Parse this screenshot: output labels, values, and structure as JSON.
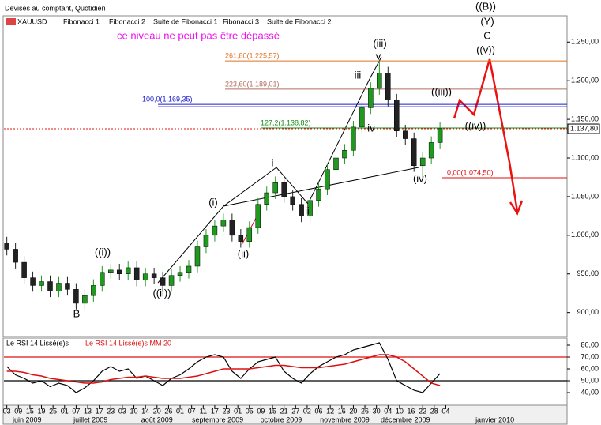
{
  "chart_data": {
    "type": "candlestick",
    "title": "Devises au comptant, Quotidien",
    "symbol": "XAUUSD",
    "toolbar": [
      "Fibonacci 1",
      "Fibonacci 2",
      "Suite de Fibonacci 1",
      "Fibonacci 3",
      "Suite de Fibonacci 2"
    ],
    "annotation": "ce niveau ne peut pas être dépassé",
    "x": [
      1,
      4,
      7,
      10,
      13,
      16,
      19,
      22,
      25,
      28,
      31,
      34,
      37,
      40,
      43,
      46,
      49,
      52,
      55,
      58,
      61,
      64,
      67,
      70,
      73,
      76,
      79,
      82,
      85,
      88,
      91,
      94,
      97,
      100,
      103,
      106,
      109,
      112,
      115,
      118,
      121,
      124,
      127,
      130,
      133,
      136,
      139,
      142,
      145,
      148,
      151
    ],
    "open": [
      990,
      982,
      965,
      945,
      935,
      940,
      928,
      938,
      930,
      912,
      922,
      935,
      952,
      955,
      950,
      958,
      942,
      950,
      945,
      935,
      948,
      952,
      960,
      985,
      1000,
      1012,
      1020,
      1000,
      992,
      1010,
      1040,
      1055,
      1068,
      1050,
      1040,
      1025,
      1045,
      1060,
      1085,
      1100,
      1110,
      1140,
      1165,
      1190,
      1210,
      1175,
      1135,
      1125,
      1090,
      1100,
      1120
    ],
    "high": [
      998,
      990,
      973,
      953,
      948,
      948,
      946,
      946,
      938,
      930,
      943,
      960,
      963,
      963,
      966,
      966,
      958,
      958,
      953,
      956,
      960,
      968,
      993,
      1008,
      1020,
      1028,
      1028,
      1008,
      1018,
      1048,
      1063,
      1076,
      1076,
      1058,
      1048,
      1053,
      1068,
      1093,
      1108,
      1118,
      1148,
      1173,
      1198,
      1226,
      1218,
      1183,
      1143,
      1133,
      1108,
      1128,
      1146
    ],
    "low": [
      974,
      957,
      937,
      927,
      927,
      920,
      920,
      922,
      904,
      904,
      914,
      927,
      944,
      942,
      942,
      934,
      934,
      937,
      927,
      927,
      940,
      944,
      952,
      977,
      992,
      1004,
      992,
      984,
      984,
      1002,
      1032,
      1047,
      1042,
      1032,
      1017,
      1017,
      1037,
      1052,
      1077,
      1092,
      1102,
      1132,
      1157,
      1182,
      1167,
      1127,
      1117,
      1082,
      1074,
      1092,
      1112
    ],
    "close": [
      982,
      965,
      945,
      935,
      940,
      928,
      938,
      930,
      912,
      922,
      935,
      952,
      955,
      950,
      958,
      942,
      950,
      945,
      935,
      948,
      952,
      960,
      985,
      1000,
      1012,
      1020,
      1000,
      992,
      1010,
      1040,
      1055,
      1068,
      1050,
      1040,
      1025,
      1045,
      1060,
      1085,
      1100,
      1110,
      1140,
      1165,
      1190,
      1210,
      1175,
      1135,
      1125,
      1090,
      1100,
      1120,
      1138
    ],
    "up_color": "#1f9a1f",
    "down_color": "#222222",
    "xlim": [
      0,
      195
    ],
    "ylim": [
      869,
      1284
    ],
    "yticks": [
      {
        "value": 900,
        "label": "900,00"
      },
      {
        "value": 950,
        "label": "950,00"
      },
      {
        "value": 1000,
        "label": "1.000,00"
      },
      {
        "value": 1050,
        "label": "1.050,00"
      },
      {
        "value": 1100,
        "label": "1.100,00"
      },
      {
        "value": 1150,
        "label": "1.150,00"
      },
      {
        "value": 1200,
        "label": "1.200,00"
      },
      {
        "value": 1250,
        "label": "1.250,00"
      }
    ],
    "last_price": {
      "value": 1137.8,
      "label": "1.137,80"
    },
    "fib_levels": [
      {
        "label": "261,80(1.225,57)",
        "value": 1225.57,
        "color": "#e07020"
      },
      {
        "label": "223,60(1.189,01)",
        "value": 1189.01,
        "color": "#b07060"
      },
      {
        "label": "100,0(1.169,35)",
        "value": 1169.35,
        "color": "#1a1acc"
      },
      {
        "label": "127,2(1.138,82)",
        "value": 1138.82,
        "color": "#1a8a1a"
      },
      {
        "label": "0,00(1.074,50)",
        "value": 1074.5,
        "color": "#dd1010"
      }
    ],
    "wave_labels": [
      "((B))",
      "(Y)",
      "C",
      "((v))",
      "(iii)",
      "v",
      "iii",
      "iv",
      "((iii))",
      "((iv))",
      "(iv)",
      "i",
      "ii",
      "(i)",
      "(ii)",
      "((i))",
      "((ii))",
      "B"
    ],
    "xticks": [
      {
        "value": 1,
        "label": "03"
      },
      {
        "value": 5,
        "label": "09"
      },
      {
        "value": 9,
        "label": "15"
      },
      {
        "value": 13,
        "label": "19"
      },
      {
        "value": 17,
        "label": "25"
      },
      {
        "value": 21,
        "label": "01"
      },
      {
        "value": 25,
        "label": "07"
      },
      {
        "value": 29,
        "label": "13"
      },
      {
        "value": 33,
        "label": "17"
      },
      {
        "value": 37,
        "label": "23"
      },
      {
        "value": 41,
        "label": "03"
      },
      {
        "value": 45,
        "label": "10"
      },
      {
        "value": 49,
        "label": "14"
      },
      {
        "value": 53,
        "label": "20"
      },
      {
        "value": 57,
        "label": "26"
      },
      {
        "value": 61,
        "label": "01"
      },
      {
        "value": 65,
        "label": "07"
      },
      {
        "value": 69,
        "label": "11"
      },
      {
        "value": 73,
        "label": "17"
      },
      {
        "value": 77,
        "label": "23"
      },
      {
        "value": 81,
        "label": "01"
      },
      {
        "value": 85,
        "label": "05"
      },
      {
        "value": 89,
        "label": "09"
      },
      {
        "value": 93,
        "label": "15"
      },
      {
        "value": 97,
        "label": "21"
      },
      {
        "value": 101,
        "label": "27"
      },
      {
        "value": 105,
        "label": "02"
      },
      {
        "value": 109,
        "label": "06"
      },
      {
        "value": 113,
        "label": "12"
      },
      {
        "value": 117,
        "label": "16"
      },
      {
        "value": 121,
        "label": "20"
      },
      {
        "value": 125,
        "label": "26"
      },
      {
        "value": 129,
        "label": "30"
      },
      {
        "value": 133,
        "label": "04"
      },
      {
        "value": 137,
        "label": "10"
      },
      {
        "value": 141,
        "label": "16"
      },
      {
        "value": 145,
        "label": "22"
      },
      {
        "value": 149,
        "label": "28"
      },
      {
        "value": 153,
        "label": "04"
      }
    ],
    "month_labels": [
      {
        "value": 8,
        "label": "juin 2009"
      },
      {
        "value": 30,
        "label": "juillet 2009"
      },
      {
        "value": 53,
        "label": "août 2009"
      },
      {
        "value": 74,
        "label": "septembre 2009"
      },
      {
        "value": 96,
        "label": "octobre 2009"
      },
      {
        "value": 118,
        "label": "novembre 2009"
      },
      {
        "value": 139,
        "label": "décembre 2009"
      },
      {
        "value": 170,
        "label": "janvier 2010"
      }
    ],
    "rsi": {
      "y2lim": [
        30,
        85
      ],
      "y2ticks": [
        {
          "value": 40,
          "label": "40,00"
        },
        {
          "value": 50,
          "label": "50,00"
        },
        {
          "value": 60,
          "label": "60,00"
        },
        {
          "value": 70,
          "label": "70,00"
        },
        {
          "value": 80,
          "label": "80,00"
        }
      ],
      "levels": [
        {
          "value": 70,
          "color": "#dd1010"
        },
        {
          "value": 50,
          "color": "#000000"
        }
      ],
      "series": [
        {
          "name": "Le RSI 14 Lissé(e)s",
          "color": "#000000",
          "values": [
            62,
            55,
            52,
            48,
            50,
            45,
            48,
            46,
            40,
            44,
            50,
            58,
            62,
            58,
            60,
            52,
            54,
            50,
            46,
            52,
            55,
            60,
            66,
            70,
            72,
            70,
            58,
            52,
            60,
            66,
            68,
            70,
            58,
            52,
            48,
            56,
            62,
            66,
            70,
            72,
            76,
            78,
            80,
            82,
            68,
            50,
            46,
            42,
            40,
            48,
            56
          ]
        },
        {
          "name": "Le RSI 14 Lissé(e)s MM 20",
          "color": "#dd1010",
          "values": [
            58,
            58,
            57,
            55,
            54,
            52,
            51,
            50,
            49,
            48,
            48,
            49,
            51,
            52,
            53,
            53,
            54,
            53,
            52,
            52,
            52,
            53,
            54,
            56,
            58,
            60,
            60,
            60,
            60,
            61,
            62,
            63,
            63,
            62,
            61,
            61,
            61,
            62,
            63,
            64,
            66,
            68,
            70,
            72,
            72,
            70,
            66,
            60,
            54,
            48,
            46
          ]
        }
      ]
    }
  }
}
